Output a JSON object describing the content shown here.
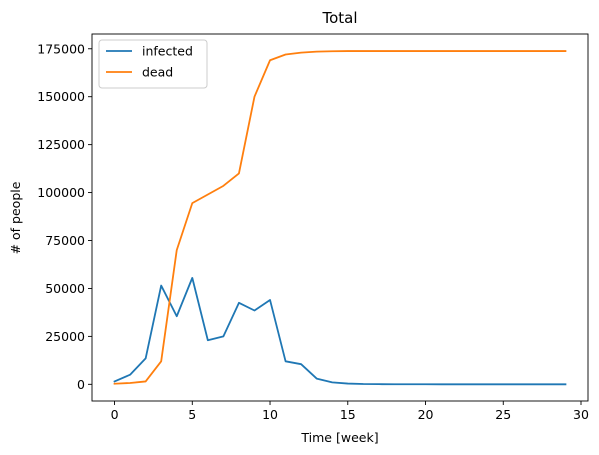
{
  "chart_data": {
    "type": "line",
    "title": "Total",
    "xlabel": "Time [week]",
    "ylabel": "# of people",
    "xlim": [
      -1.45,
      30.45
    ],
    "ylim": [
      -8700,
      182700
    ],
    "xticks": [
      0,
      5,
      10,
      15,
      20,
      25,
      30
    ],
    "yticks": [
      0,
      25000,
      50000,
      75000,
      100000,
      125000,
      150000,
      175000
    ],
    "grid": false,
    "legend_position": "top-left",
    "x": [
      0,
      1,
      2,
      3,
      4,
      5,
      6,
      7,
      8,
      9,
      10,
      11,
      12,
      13,
      14,
      15,
      16,
      17,
      18,
      19,
      20,
      21,
      22,
      23,
      24,
      25,
      26,
      27,
      28,
      29
    ],
    "series": [
      {
        "name": "infected",
        "color": "#1f77b4",
        "values": [
          1500,
          5000,
          13500,
          51500,
          35500,
          55500,
          23000,
          25000,
          42500,
          38500,
          44000,
          12000,
          10500,
          3000,
          1000,
          400,
          150,
          80,
          50,
          30,
          20,
          15,
          10,
          8,
          5,
          5,
          3,
          2,
          1,
          1
        ]
      },
      {
        "name": "dead",
        "color": "#ff7f0e",
        "values": [
          300,
          700,
          1500,
          12000,
          70000,
          94500,
          99000,
          103500,
          110000,
          150000,
          169000,
          172000,
          173000,
          173500,
          173700,
          173800,
          173800,
          173800,
          173800,
          173800,
          173800,
          173800,
          173800,
          173800,
          173800,
          173800,
          173800,
          173800,
          173800,
          173800
        ]
      }
    ]
  }
}
